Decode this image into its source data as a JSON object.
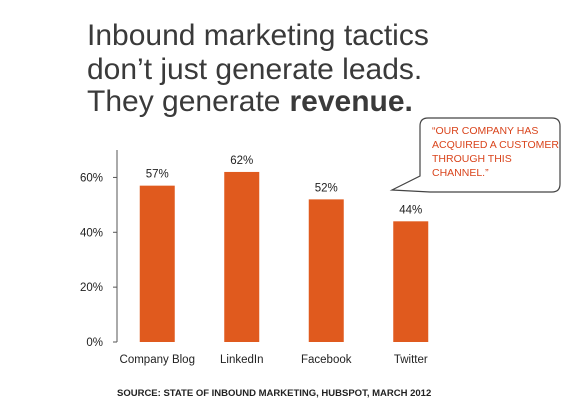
{
  "chart_data": {
    "type": "bar",
    "title_lines": [
      "Inbound marketing tactics",
      "don’t just generate leads.",
      "They generate"
    ],
    "title_emphasis": "revenue.",
    "callout_lines": [
      "“OUR COMPANY HAS",
      "ACQUIRED A CUSTOMER",
      "THROUGH THIS",
      "CHANNEL.”"
    ],
    "source": "SOURCE: STATE OF INBOUND MARKETING, HUBSPOT, MARCH 2012",
    "categories": [
      "Company Blog",
      "LinkedIn",
      "Facebook",
      "Twitter"
    ],
    "values": [
      57,
      62,
      52,
      44
    ],
    "value_labels": [
      "57%",
      "62%",
      "52%",
      "44%"
    ],
    "color": "#e05a1e",
    "ylim": [
      0,
      70
    ],
    "yticks": [
      {
        "value": 0,
        "label": "0%"
      },
      {
        "value": 20,
        "label": "20%"
      },
      {
        "value": 40,
        "label": "40%"
      },
      {
        "value": 60,
        "label": "60%"
      }
    ],
    "grid": false
  }
}
